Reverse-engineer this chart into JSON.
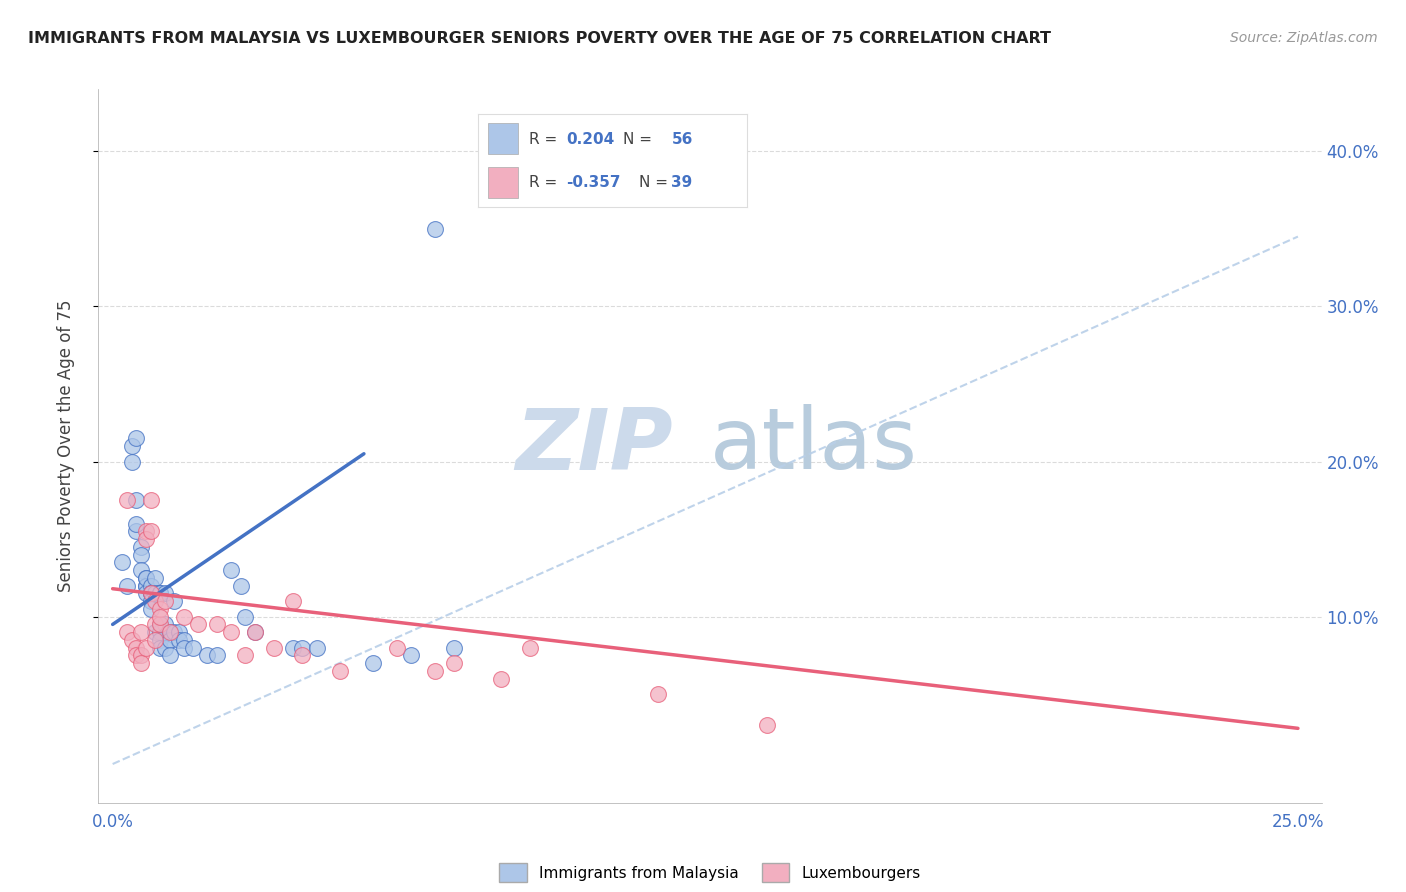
{
  "title": "IMMIGRANTS FROM MALAYSIA VS LUXEMBOURGER SENIORS POVERTY OVER THE AGE OF 75 CORRELATION CHART",
  "source": "Source: ZipAtlas.com",
  "ylabel": "Seniors Poverty Over the Age of 75",
  "xlabel_ticks": [
    "0.0%",
    "",
    "",
    "",
    "",
    "",
    "",
    "",
    "",
    "",
    "25.0%"
  ],
  "xlabel_vals": [
    0.0,
    0.025,
    0.05,
    0.075,
    0.1,
    0.125,
    0.15,
    0.175,
    0.2,
    0.225,
    0.25
  ],
  "ylabel_ticks_right": [
    "10.0%",
    "20.0%",
    "30.0%",
    "40.0%"
  ],
  "ylabel_vals": [
    0.1,
    0.2,
    0.3,
    0.4
  ],
  "xlim": [
    -0.003,
    0.255
  ],
  "ylim": [
    -0.02,
    0.44
  ],
  "legend_label1": "Immigrants from Malaysia",
  "legend_label2": "Luxembourgers",
  "R1": "0.204",
  "N1": "56",
  "R2": "-0.357",
  "N2": "39",
  "color_blue": "#adc6e8",
  "color_pink": "#f2afc0",
  "trendline_blue": "#4472c4",
  "trendline_pink": "#e8607a",
  "trendline_dashed": "#b8cfe8",
  "background": "#ffffff",
  "grid_color": "#cccccc",
  "text_color_blue": "#4472c4",
  "scatter_blue": [
    [
      0.002,
      0.135
    ],
    [
      0.003,
      0.12
    ],
    [
      0.004,
      0.21
    ],
    [
      0.004,
      0.2
    ],
    [
      0.005,
      0.215
    ],
    [
      0.005,
      0.175
    ],
    [
      0.005,
      0.155
    ],
    [
      0.005,
      0.16
    ],
    [
      0.006,
      0.145
    ],
    [
      0.006,
      0.14
    ],
    [
      0.006,
      0.13
    ],
    [
      0.007,
      0.125
    ],
    [
      0.007,
      0.12
    ],
    [
      0.007,
      0.12
    ],
    [
      0.007,
      0.115
    ],
    [
      0.007,
      0.125
    ],
    [
      0.008,
      0.12
    ],
    [
      0.008,
      0.115
    ],
    [
      0.008,
      0.115
    ],
    [
      0.008,
      0.11
    ],
    [
      0.008,
      0.105
    ],
    [
      0.009,
      0.125
    ],
    [
      0.009,
      0.115
    ],
    [
      0.009,
      0.09
    ],
    [
      0.01,
      0.115
    ],
    [
      0.01,
      0.115
    ],
    [
      0.01,
      0.095
    ],
    [
      0.01,
      0.09
    ],
    [
      0.01,
      0.085
    ],
    [
      0.01,
      0.08
    ],
    [
      0.011,
      0.115
    ],
    [
      0.011,
      0.095
    ],
    [
      0.011,
      0.08
    ],
    [
      0.012,
      0.09
    ],
    [
      0.012,
      0.085
    ],
    [
      0.012,
      0.075
    ],
    [
      0.013,
      0.11
    ],
    [
      0.013,
      0.09
    ],
    [
      0.014,
      0.09
    ],
    [
      0.014,
      0.085
    ],
    [
      0.015,
      0.085
    ],
    [
      0.015,
      0.08
    ],
    [
      0.017,
      0.08
    ],
    [
      0.02,
      0.075
    ],
    [
      0.022,
      0.075
    ],
    [
      0.025,
      0.13
    ],
    [
      0.027,
      0.12
    ],
    [
      0.028,
      0.1
    ],
    [
      0.03,
      0.09
    ],
    [
      0.038,
      0.08
    ],
    [
      0.04,
      0.08
    ],
    [
      0.043,
      0.08
    ],
    [
      0.055,
      0.07
    ],
    [
      0.063,
      0.075
    ],
    [
      0.068,
      0.35
    ],
    [
      0.072,
      0.08
    ]
  ],
  "scatter_pink": [
    [
      0.003,
      0.175
    ],
    [
      0.003,
      0.09
    ],
    [
      0.004,
      0.085
    ],
    [
      0.005,
      0.08
    ],
    [
      0.005,
      0.075
    ],
    [
      0.006,
      0.075
    ],
    [
      0.006,
      0.07
    ],
    [
      0.006,
      0.09
    ],
    [
      0.007,
      0.08
    ],
    [
      0.007,
      0.155
    ],
    [
      0.007,
      0.15
    ],
    [
      0.008,
      0.175
    ],
    [
      0.008,
      0.155
    ],
    [
      0.008,
      0.115
    ],
    [
      0.009,
      0.11
    ],
    [
      0.009,
      0.095
    ],
    [
      0.009,
      0.085
    ],
    [
      0.01,
      0.095
    ],
    [
      0.01,
      0.105
    ],
    [
      0.01,
      0.1
    ],
    [
      0.011,
      0.11
    ],
    [
      0.012,
      0.09
    ],
    [
      0.015,
      0.1
    ],
    [
      0.018,
      0.095
    ],
    [
      0.022,
      0.095
    ],
    [
      0.025,
      0.09
    ],
    [
      0.028,
      0.075
    ],
    [
      0.03,
      0.09
    ],
    [
      0.034,
      0.08
    ],
    [
      0.038,
      0.11
    ],
    [
      0.04,
      0.075
    ],
    [
      0.048,
      0.065
    ],
    [
      0.06,
      0.08
    ],
    [
      0.068,
      0.065
    ],
    [
      0.072,
      0.07
    ],
    [
      0.082,
      0.06
    ],
    [
      0.088,
      0.08
    ],
    [
      0.115,
      0.05
    ],
    [
      0.138,
      0.03
    ]
  ],
  "trendline1_x": [
    0.0,
    0.053
  ],
  "trendline1_y": [
    0.095,
    0.205
  ],
  "trendline2_x": [
    0.0,
    0.25
  ],
  "trendline2_y": [
    0.118,
    0.028
  ],
  "dashed_line_x": [
    0.0,
    0.25
  ],
  "dashed_line_y": [
    0.005,
    0.345
  ]
}
